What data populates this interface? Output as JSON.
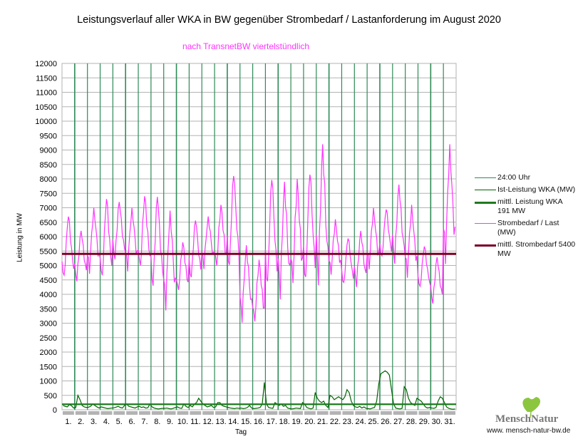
{
  "title": "Leistungsverlauf aller WKA in BW gegenüber  Strombedarf / Lastanforderung im August 2020",
  "subtitle": "nach TransnetBW viertelstündlich",
  "logo": {
    "name": "MenschNatur",
    "url": "www. mensch-natur-bw.de",
    "leaf_color": "#8cc63f"
  },
  "legend": [
    {
      "label": "24:00 Uhr",
      "color": "#2e8b57"
    },
    {
      "label": "Ist-Leistung WKA (MW)",
      "color": "#006400"
    },
    {
      "label": "mittl. Leistung WKA 191 MW",
      "color": "#1e7a1e"
    },
    {
      "label": "Strombedarf / Last (MW)",
      "color": "#ff33ff"
    },
    {
      "label": "mittl. Strombedarf 5400 MW",
      "color": "#7b0024"
    }
  ],
  "chart_data": {
    "type": "line",
    "title": "Leistungsverlauf aller WKA in BW gegenüber  Strombedarf / Lastanforderung im August 2020",
    "xlabel": "Tag",
    "ylabel": "Leistung in MW",
    "ylim": [
      0,
      12000
    ],
    "ytick_step": 500,
    "yticks": [
      "0",
      "500",
      "1000",
      "1500",
      "2000",
      "2500",
      "3000",
      "3500",
      "4000",
      "4500",
      "5000",
      "5500",
      "6000",
      "6500",
      "7000",
      "7500",
      "8000",
      "8500",
      "9000",
      "9500",
      "10000",
      "10500",
      "11000",
      "11500",
      "12000"
    ],
    "categories": [
      "1.",
      "2.",
      "3.",
      "4.",
      "5.",
      "6.",
      "7.",
      "8.",
      "9.",
      "10.",
      "11.",
      "12.",
      "13.",
      "14.",
      "15.",
      "16.",
      "17.",
      "18.",
      "19.",
      "20.",
      "21.",
      "22.",
      "23.",
      "24.",
      "25.",
      "26.",
      "27.",
      "28.",
      "29.",
      "30.",
      "31."
    ],
    "grid": true,
    "legend_position": "right",
    "samples_per_day": 6,
    "wind_mw": [
      150,
      120,
      100,
      180,
      140,
      60,
      80,
      500,
      350,
      150,
      100,
      80,
      90,
      120,
      200,
      150,
      100,
      60,
      100,
      80,
      60,
      40,
      50,
      60,
      70,
      90,
      120,
      80,
      60,
      150,
      200,
      120,
      100,
      80,
      60,
      100,
      120,
      80,
      100,
      60,
      70,
      200,
      100,
      60,
      40,
      30,
      40,
      50,
      50,
      60,
      40,
      30,
      50,
      80,
      100,
      60,
      50,
      200,
      120,
      80,
      150,
      100,
      200,
      250,
      400,
      300,
      200,
      150,
      100,
      120,
      150,
      80,
      100,
      250,
      250,
      150,
      120,
      100,
      80,
      60,
      50,
      40,
      60,
      50,
      60,
      40,
      50,
      80,
      150,
      60,
      40,
      50,
      60,
      80,
      200,
      950,
      200,
      80,
      60,
      50,
      250,
      200,
      150,
      200,
      120,
      150,
      60,
      40,
      30,
      40,
      60,
      50,
      40,
      250,
      200,
      80,
      50,
      30,
      60,
      600,
      400,
      300,
      250,
      300,
      150,
      80,
      500,
      450,
      350,
      400,
      450,
      400,
      350,
      450,
      700,
      600,
      300,
      150,
      100,
      80,
      120,
      60,
      100,
      50,
      40,
      30,
      60,
      80,
      300,
      900,
      1250,
      1300,
      1350,
      1300,
      1200,
      700,
      200,
      60,
      40,
      30,
      50,
      800,
      700,
      400,
      250,
      200,
      150,
      400,
      350,
      300,
      200,
      100,
      60,
      80,
      60,
      50,
      80,
      300,
      450,
      400,
      250,
      100,
      50,
      30,
      20,
      30
    ],
    "load_daily_min_max_mw": [
      [
        4300,
        6700
      ],
      [
        4300,
        6200
      ],
      [
        4600,
        7000
      ],
      [
        4200,
        7300
      ],
      [
        5000,
        7200
      ],
      [
        4700,
        7000
      ],
      [
        4600,
        7400
      ],
      [
        3900,
        7400
      ],
      [
        3300,
        6900
      ],
      [
        3900,
        5800
      ],
      [
        4300,
        6600
      ],
      [
        4800,
        6700
      ],
      [
        4700,
        7100
      ],
      [
        4500,
        8200
      ],
      [
        2900,
        5700
      ],
      [
        2800,
        5200
      ],
      [
        3800,
        8100
      ],
      [
        3600,
        7900
      ],
      [
        4000,
        8000
      ],
      [
        3900,
        8300
      ],
      [
        4000,
        9200
      ],
      [
        4500,
        6600
      ],
      [
        4100,
        6000
      ],
      [
        4100,
        6200
      ],
      [
        4700,
        7000
      ],
      [
        5000,
        7000
      ],
      [
        4800,
        7800
      ],
      [
        4400,
        7100
      ],
      [
        4000,
        5700
      ],
      [
        3500,
        5300
      ],
      [
        4800,
        9200
      ]
    ],
    "mean_wind_mw": 191,
    "mean_load_mw": 5400
  }
}
